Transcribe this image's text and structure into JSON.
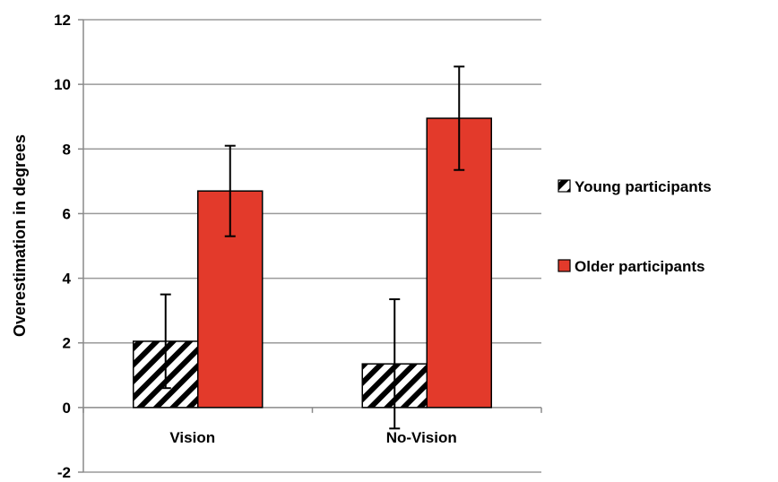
{
  "chart_data": {
    "type": "bar",
    "categories": [
      "Vision",
      "No-Vision"
    ],
    "series": [
      {
        "name": "Young participants",
        "values": [
          2.05,
          1.35
        ],
        "error": [
          1.45,
          2.0
        ],
        "pattern": "hatched"
      },
      {
        "name": "Older participants",
        "values": [
          6.7,
          8.95
        ],
        "error": [
          1.4,
          1.6
        ],
        "color": "#e33a2b"
      }
    ],
    "ylabel": "Overestimation in degrees",
    "xlabel": "",
    "ylim": [
      -2,
      12
    ],
    "yticks": [
      -2,
      0,
      2,
      4,
      6,
      8,
      10,
      12
    ],
    "grid": true,
    "legend": "right"
  }
}
